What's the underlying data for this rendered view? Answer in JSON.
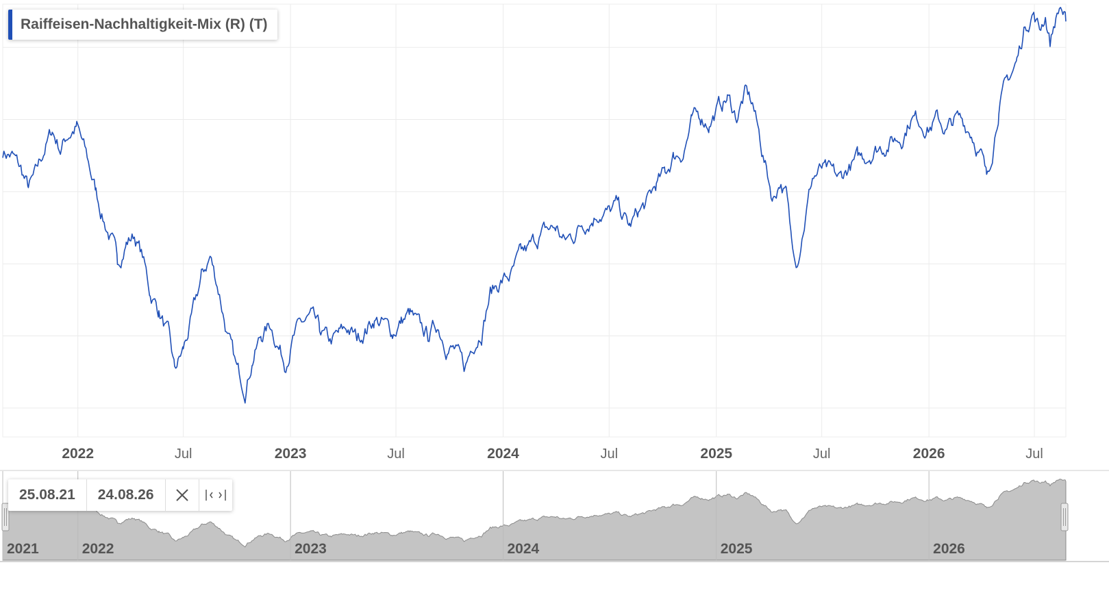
{
  "legend": {
    "label": "Raiffeisen-Nachhaltigkeit-Mix (R) (T)",
    "color": "#1f4fb6"
  },
  "range": {
    "from": "25.08.21",
    "to": "24.08.26",
    "reset_icon": "close-icon",
    "pan_icon": "pan-range-icon"
  },
  "chart_data": {
    "type": "line",
    "title": "",
    "xlabel": "",
    "ylabel": "",
    "x_range": [
      "2021-08-25",
      "2026-08-24"
    ],
    "y_range": [
      83,
      113
    ],
    "y_axis_labels": "hidden",
    "grid": true,
    "legend_placement": "top-left",
    "x_ticks": [
      {
        "date": "2022-01-01",
        "label": "2022",
        "major": true
      },
      {
        "date": "2022-07-01",
        "label": "Jul",
        "major": false
      },
      {
        "date": "2023-01-01",
        "label": "2023",
        "major": true
      },
      {
        "date": "2023-07-01",
        "label": "Jul",
        "major": false
      },
      {
        "date": "2024-01-01",
        "label": "2024",
        "major": true
      },
      {
        "date": "2024-07-01",
        "label": "Jul",
        "major": false
      },
      {
        "date": "2025-01-01",
        "label": "2025",
        "major": true
      },
      {
        "date": "2025-07-01",
        "label": "Jul",
        "major": false
      },
      {
        "date": "2026-01-01",
        "label": "2026",
        "major": true
      },
      {
        "date": "2026-07-01",
        "label": "Jul",
        "major": false
      }
    ],
    "navigator_ticks": [
      {
        "date": "2021-08-25",
        "label": "2021"
      },
      {
        "date": "2022-01-01",
        "label": "2022"
      },
      {
        "date": "2023-01-01",
        "label": "2023"
      },
      {
        "date": "2024-01-01",
        "label": "2024"
      },
      {
        "date": "2025-01-01",
        "label": "2025"
      },
      {
        "date": "2026-01-01",
        "label": "2026"
      }
    ],
    "series": [
      {
        "name": "Raiffeisen-Nachhaltigkeit-Mix (R) (T)",
        "color": "#1f4fb6",
        "points": [
          [
            "2021-08-25",
            102.8
          ],
          [
            "2021-09-10",
            102.5
          ],
          [
            "2021-09-25",
            101.5
          ],
          [
            "2021-10-08",
            100.2
          ],
          [
            "2021-10-20",
            101.0
          ],
          [
            "2021-11-05",
            103.0
          ],
          [
            "2021-11-18",
            104.2
          ],
          [
            "2021-12-02",
            103.0
          ],
          [
            "2021-12-15",
            104.0
          ],
          [
            "2021-12-30",
            104.5
          ],
          [
            "2022-01-15",
            102.5
          ],
          [
            "2022-02-01",
            100.0
          ],
          [
            "2022-02-15",
            98.0
          ],
          [
            "2022-03-01",
            96.5
          ],
          [
            "2022-03-10",
            95.0
          ],
          [
            "2022-03-25",
            96.5
          ],
          [
            "2022-04-08",
            97.0
          ],
          [
            "2022-04-22",
            95.5
          ],
          [
            "2022-05-05",
            93.0
          ],
          [
            "2022-05-20",
            91.8
          ],
          [
            "2022-06-05",
            90.0
          ],
          [
            "2022-06-16",
            87.5
          ],
          [
            "2022-07-01",
            89.0
          ],
          [
            "2022-07-15",
            91.0
          ],
          [
            "2022-08-01",
            94.0
          ],
          [
            "2022-08-16",
            95.5
          ],
          [
            "2022-09-01",
            93.0
          ],
          [
            "2022-09-15",
            90.0
          ],
          [
            "2022-10-01",
            87.5
          ],
          [
            "2022-10-15",
            86.5
          ],
          [
            "2022-10-28",
            88.5
          ],
          [
            "2022-11-12",
            90.0
          ],
          [
            "2022-11-28",
            90.8
          ],
          [
            "2022-12-10",
            89.5
          ],
          [
            "2022-12-22",
            88.2
          ],
          [
            "2023-01-05",
            89.8
          ],
          [
            "2023-01-20",
            90.8
          ],
          [
            "2023-02-05",
            91.2
          ],
          [
            "2023-02-20",
            90.2
          ],
          [
            "2023-03-10",
            89.5
          ],
          [
            "2023-03-25",
            90.0
          ],
          [
            "2023-04-10",
            90.5
          ],
          [
            "2023-04-25",
            89.8
          ],
          [
            "2023-05-10",
            90.5
          ],
          [
            "2023-05-25",
            91.2
          ],
          [
            "2023-06-10",
            90.8
          ],
          [
            "2023-06-25",
            90.2
          ],
          [
            "2023-07-10",
            91.0
          ],
          [
            "2023-07-25",
            91.5
          ],
          [
            "2023-08-10",
            90.5
          ],
          [
            "2023-08-25",
            90.0
          ],
          [
            "2023-09-10",
            90.8
          ],
          [
            "2023-09-25",
            89.5
          ],
          [
            "2023-10-10",
            89.0
          ],
          [
            "2023-10-27",
            87.6
          ],
          [
            "2023-11-10",
            89.5
          ],
          [
            "2023-11-25",
            90.5
          ],
          [
            "2023-12-10",
            93.0
          ],
          [
            "2023-12-28",
            93.8
          ],
          [
            "2024-01-15",
            94.2
          ],
          [
            "2024-02-01",
            95.5
          ],
          [
            "2024-02-15",
            96.0
          ],
          [
            "2024-03-01",
            96.8
          ],
          [
            "2024-03-15",
            97.3
          ],
          [
            "2024-04-01",
            97.5
          ],
          [
            "2024-04-15",
            96.5
          ],
          [
            "2024-05-01",
            97.0
          ],
          [
            "2024-05-15",
            97.8
          ],
          [
            "2024-06-01",
            98.2
          ],
          [
            "2024-06-15",
            98.7
          ],
          [
            "2024-07-01",
            98.5
          ],
          [
            "2024-07-15",
            99.0
          ],
          [
            "2024-08-05",
            97.5
          ],
          [
            "2024-08-20",
            98.5
          ],
          [
            "2024-09-05",
            99.2
          ],
          [
            "2024-09-20",
            100.5
          ],
          [
            "2024-10-05",
            101.2
          ],
          [
            "2024-10-20",
            102.5
          ],
          [
            "2024-11-05",
            102.8
          ],
          [
            "2024-11-20",
            104.8
          ],
          [
            "2024-12-05",
            105.2
          ],
          [
            "2024-12-20",
            104.8
          ],
          [
            "2025-01-05",
            105.8
          ],
          [
            "2025-01-20",
            106.5
          ],
          [
            "2025-02-05",
            105.2
          ],
          [
            "2025-02-20",
            106.8
          ],
          [
            "2025-03-05",
            106.0
          ],
          [
            "2025-03-20",
            103.0
          ],
          [
            "2025-04-08",
            99.5
          ],
          [
            "2025-04-20",
            100.8
          ],
          [
            "2025-05-01",
            99.8
          ],
          [
            "2025-05-10",
            96.5
          ],
          [
            "2025-05-20",
            95.5
          ],
          [
            "2025-06-01",
            98.0
          ],
          [
            "2025-06-15",
            101.0
          ],
          [
            "2025-07-01",
            101.5
          ],
          [
            "2025-07-15",
            101.2
          ],
          [
            "2025-08-01",
            100.8
          ],
          [
            "2025-08-15",
            101.6
          ],
          [
            "2025-09-01",
            102.2
          ],
          [
            "2025-09-15",
            102.5
          ],
          [
            "2025-10-01",
            103.0
          ],
          [
            "2025-10-15",
            103.2
          ],
          [
            "2025-11-01",
            103.6
          ],
          [
            "2025-11-15",
            103.8
          ],
          [
            "2025-12-01",
            105.2
          ],
          [
            "2025-12-15",
            105.0
          ],
          [
            "2026-01-01",
            104.5
          ],
          [
            "2026-01-15",
            105.0
          ],
          [
            "2026-02-01",
            104.2
          ],
          [
            "2026-02-15",
            105.0
          ],
          [
            "2026-03-01",
            104.8
          ],
          [
            "2026-03-15",
            104.2
          ],
          [
            "2026-04-01",
            102.5
          ],
          [
            "2026-04-10",
            100.8
          ],
          [
            "2026-04-20",
            103.0
          ],
          [
            "2026-05-01",
            106.0
          ],
          [
            "2026-05-15",
            107.5
          ],
          [
            "2026-06-01",
            109.0
          ],
          [
            "2026-06-15",
            111.5
          ],
          [
            "2026-06-28",
            112.5
          ],
          [
            "2026-07-10",
            111.2
          ],
          [
            "2026-07-20",
            112.3
          ],
          [
            "2026-07-28",
            110.4
          ],
          [
            "2026-08-05",
            111.8
          ],
          [
            "2026-08-15",
            112.9
          ],
          [
            "2026-08-24",
            111.8
          ]
        ]
      }
    ]
  }
}
